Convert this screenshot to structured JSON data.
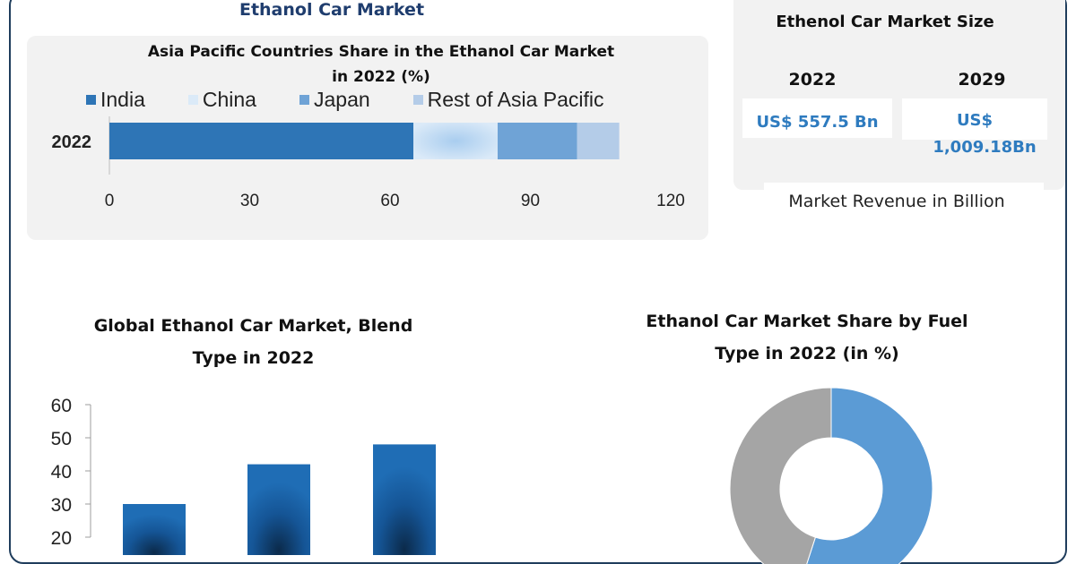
{
  "header": {
    "title": "Ethanol Car Market"
  },
  "colors": {
    "india": "#2e75b6",
    "china": "#dbeaf8",
    "japan": "#6fa3d6",
    "rest": "#b4cce8",
    "blend_bar": "#1f6db5",
    "donut_blue": "#5b9bd5",
    "donut_gray": "#a5a5a5",
    "value_text": "#2e7bbf"
  },
  "market_size": {
    "title": "Ethenol Car Market Size",
    "items": [
      {
        "year": "2022",
        "value": "US$ 557.5 Bn"
      },
      {
        "year": "2029",
        "value_line1": "US$",
        "value_line2": "1,009.18Bn"
      }
    ],
    "note": "Market Revenue in Billion"
  },
  "chart_data": [
    {
      "type": "bar",
      "orientation": "horizontal",
      "stacked": true,
      "title": "Asia Pacific Countries Share in the Ethanol Car Market in 2022 (%)",
      "title_line1": "Asia Pacific Countries Share in the Ethanol Car Market",
      "title_line2": "in 2022 (%)",
      "categories": [
        "2022"
      ],
      "series": [
        {
          "name": "India",
          "values": [
            65
          ]
        },
        {
          "name": "China",
          "values": [
            18
          ]
        },
        {
          "name": "Japan",
          "values": [
            17
          ]
        },
        {
          "name": "Rest of Asia Pacific",
          "values": [
            9
          ]
        }
      ],
      "xlim": [
        0,
        120
      ],
      "xticks": [
        "0",
        "30",
        "60",
        "90",
        "120"
      ],
      "legend": "top"
    },
    {
      "type": "bar",
      "title": "Global Ethanol Car Market, Blend Type in 2022",
      "title_line1": "Global Ethanol Car Market, Blend",
      "title_line2": "Type in 2022",
      "categories": [
        "",
        "",
        ""
      ],
      "values": [
        30,
        42,
        48
      ],
      "ylim": [
        20,
        60
      ],
      "yticks": [
        "20",
        "30",
        "40",
        "50",
        "60"
      ]
    },
    {
      "type": "pie",
      "donut": true,
      "title": "Ethanol Car Market Share by Fuel Type in 2022 (in %)",
      "title_line1": "Ethanol Car Market Share by Fuel",
      "title_line2": "Type in 2022 (in %)",
      "values": [
        55,
        45
      ]
    }
  ]
}
